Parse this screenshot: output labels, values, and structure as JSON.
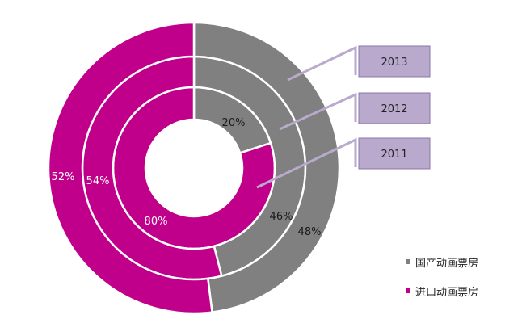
{
  "chart_data": {
    "type": "pie",
    "style": "nested-donut",
    "colors": {
      "domestic": "#808080",
      "imported": "#c0008a",
      "year_box_fill": "#b9a9cc",
      "year_box_border": "#8a78a8"
    },
    "series": [
      {
        "name": "国产动画票房",
        "values": [
          20,
          46,
          48
        ]
      },
      {
        "name": "进口动画票房",
        "values": [
          80,
          54,
          52
        ]
      }
    ],
    "rings": [
      {
        "year": "2011",
        "values": {
          "domestic": 20,
          "imported": 80
        },
        "labels": {
          "domestic": "20%",
          "imported": "80%"
        }
      },
      {
        "year": "2012",
        "values": {
          "domestic": 46,
          "imported": 54
        },
        "labels": {
          "domestic": "46%",
          "imported": "54%"
        }
      },
      {
        "year": "2013",
        "values": {
          "domestic": 48,
          "imported": 52
        },
        "labels": {
          "domestic": "48%",
          "imported": "52%"
        }
      }
    ],
    "legend": {
      "position": "bottom-right",
      "items": [
        {
          "key": "domestic",
          "label": "国产动画票房"
        },
        {
          "key": "imported",
          "label": "进口动画票房"
        }
      ]
    }
  }
}
